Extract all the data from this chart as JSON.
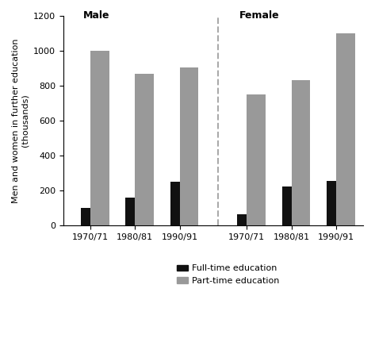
{
  "male_years": [
    "1970/71",
    "1980/81",
    "1990/91"
  ],
  "female_years": [
    "1970/71",
    "1980/81",
    "1990/91"
  ],
  "male_fulltime": [
    100,
    160,
    250
  ],
  "male_parttime": [
    1000,
    865,
    905
  ],
  "female_fulltime": [
    65,
    225,
    255
  ],
  "female_parttime": [
    750,
    830,
    1100
  ],
  "ylabel": "Men and women in further education\n(thousands)",
  "male_label": "Male",
  "female_label": "Female",
  "legend_fulltime": "Full-time education",
  "legend_parttime": "Part-time education",
  "ylim": [
    0,
    1200
  ],
  "yticks": [
    0,
    200,
    400,
    600,
    800,
    1000,
    1200
  ],
  "bar_width": 0.42,
  "fulltime_color": "#111111",
  "parttime_color": "#999999",
  "background_color": "#ffffff",
  "figsize": [
    4.73,
    4.36
  ],
  "dpi": 100
}
